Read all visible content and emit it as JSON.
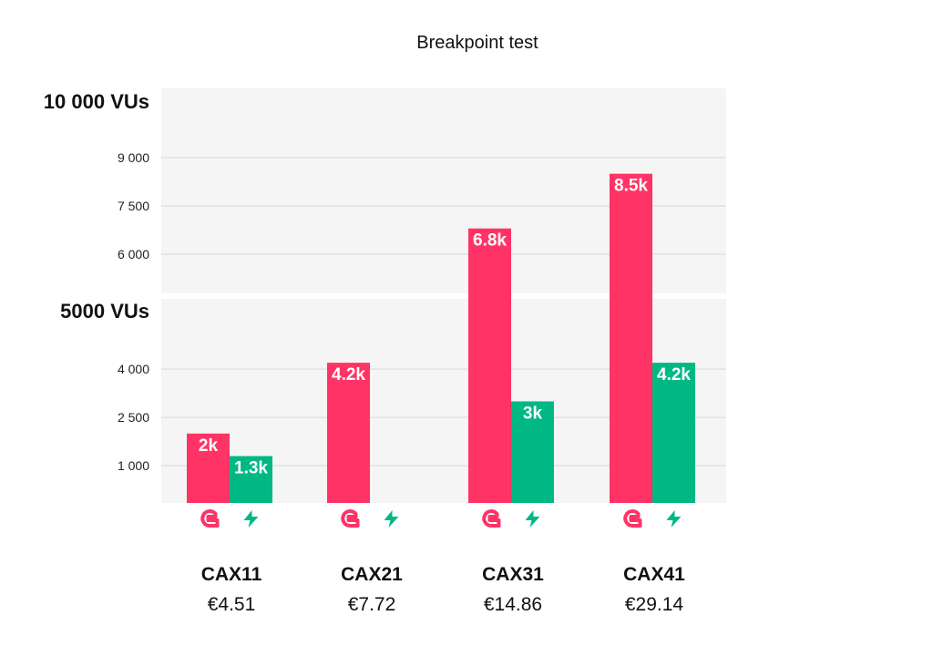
{
  "chart_data": {
    "type": "bar",
    "title": "Breakpoint test",
    "axis_break": true,
    "panels": [
      {
        "label": "5000 VUs",
        "ylim": [
          0,
          5000
        ],
        "ticks": [
          1000,
          2500,
          4000
        ],
        "tick_labels": [
          "1 000",
          "2 500",
          "4 000"
        ]
      },
      {
        "label": "10 000 VUs",
        "ylim": [
          5000,
          10000
        ],
        "ticks": [
          6000,
          7500,
          9000
        ],
        "tick_labels": [
          "6 000",
          "7 500",
          "9 000"
        ]
      }
    ],
    "categories": [
      "CAX11",
      "CAX21",
      "CAX31",
      "CAX41"
    ],
    "prices": [
      "€4.51",
      "€7.72",
      "€14.86",
      "€29.14"
    ],
    "series": [
      {
        "icon": "pink-c-logo-icon",
        "color": "#ff3366",
        "values": [
          2000,
          4200,
          6800,
          8500
        ],
        "labels": [
          "2k",
          "4.2k",
          "6.8k",
          "8.5k"
        ]
      },
      {
        "icon": "green-bolt-icon",
        "color": "#00b884",
        "values": [
          1300,
          null,
          3000,
          4200
        ],
        "labels": [
          "1.3k",
          "",
          "3k",
          "4.2k"
        ]
      }
    ],
    "grid": true,
    "background": "#f5f5f5"
  }
}
